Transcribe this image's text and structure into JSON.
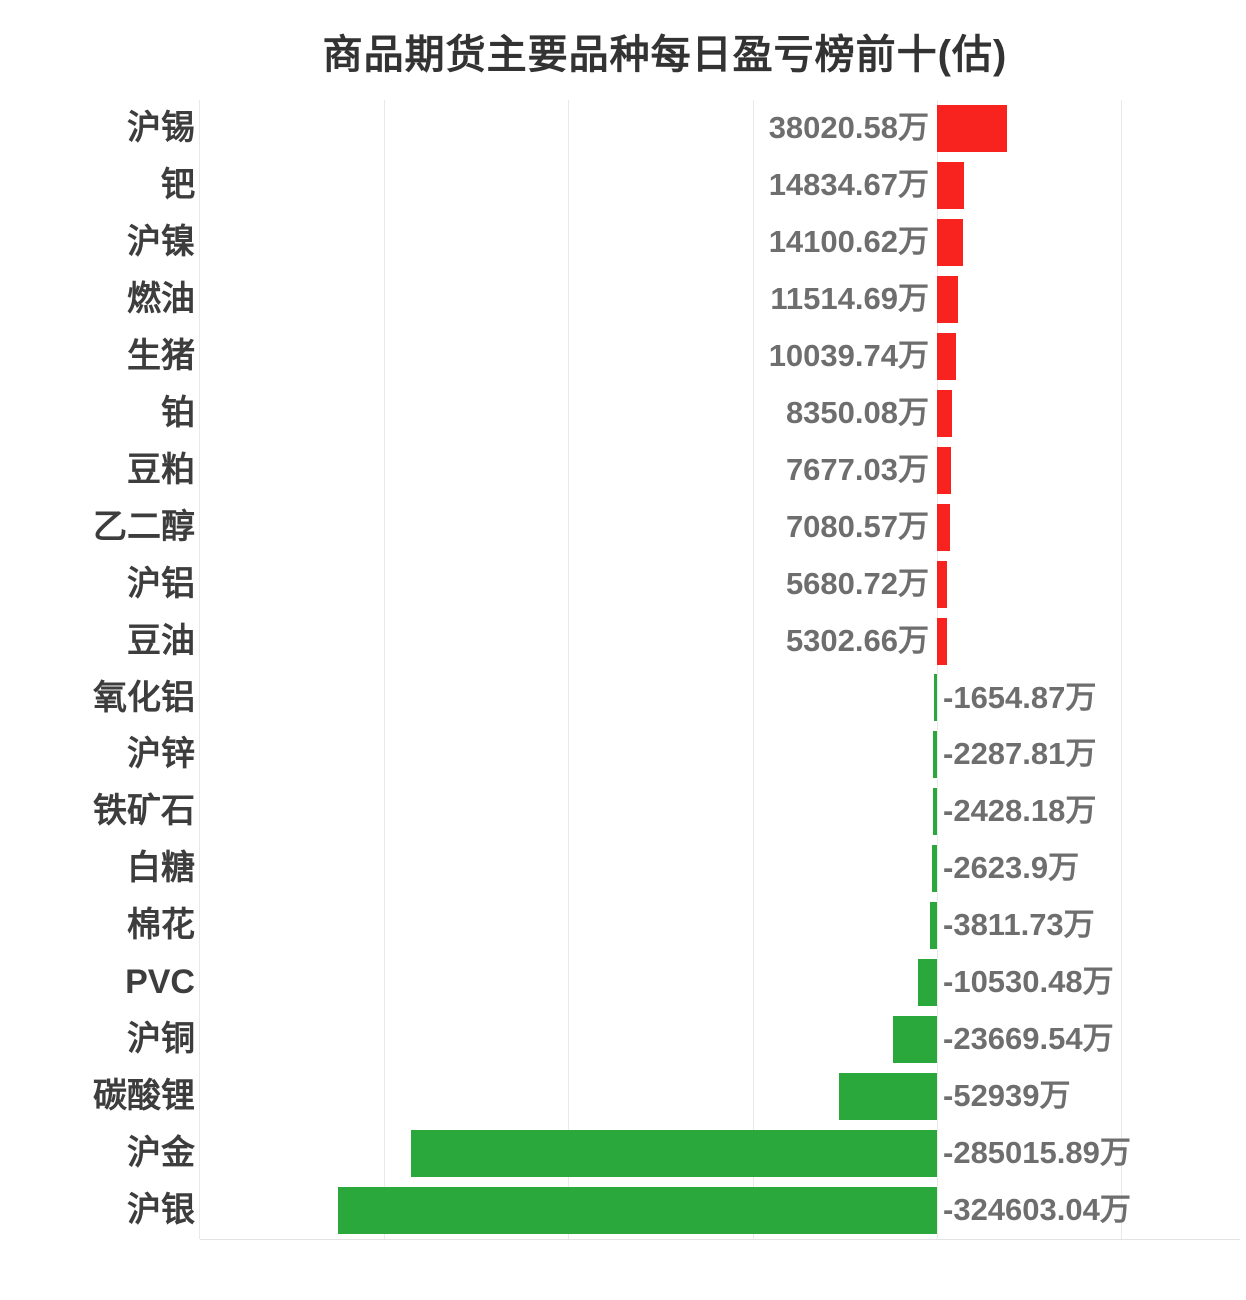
{
  "chart_data": {
    "type": "bar",
    "orientation": "horizontal",
    "title": "商品期货主要品种每日盈亏榜前十(估)",
    "unit": "万",
    "legend_position": "none",
    "grid": true,
    "categories": [
      "沪锡",
      "钯",
      "沪镍",
      "燃油",
      "生猪",
      "铂",
      "豆粕",
      "乙二醇",
      "沪铝",
      "豆油",
      "氧化铝",
      "沪锌",
      "铁矿石",
      "白糖",
      "棉花",
      "PVC",
      "沪铜",
      "碳酸锂",
      "沪金",
      "沪银"
    ],
    "values": [
      38020.58,
      14834.67,
      14100.62,
      11514.69,
      10039.74,
      8350.08,
      7677.03,
      7080.57,
      5680.72,
      5302.66,
      -1654.87,
      -2287.81,
      -2428.18,
      -2623.9,
      -3811.73,
      -10530.48,
      -23669.54,
      -52939,
      -285015.89,
      -324603.04
    ],
    "value_labels": [
      "38020.58万",
      "14834.67万",
      "14100.62万",
      "11514.69万",
      "10039.74万",
      "8350.08万",
      "7677.03万",
      "7080.57万",
      "5680.72万",
      "5302.66万",
      "-1654.87万",
      "-2287.81万",
      "-2428.18万",
      "-2623.9万",
      "-3811.73万",
      "-10530.48万",
      "-23669.54万",
      "-52939万",
      "-285015.89万",
      "-324603.04万"
    ],
    "positive_color": "#f8231e",
    "negative_color": "#2aa83c",
    "xlim": [
      -400000,
      165000
    ],
    "gridline_step": 100000,
    "xlabel": "",
    "ylabel": ""
  }
}
